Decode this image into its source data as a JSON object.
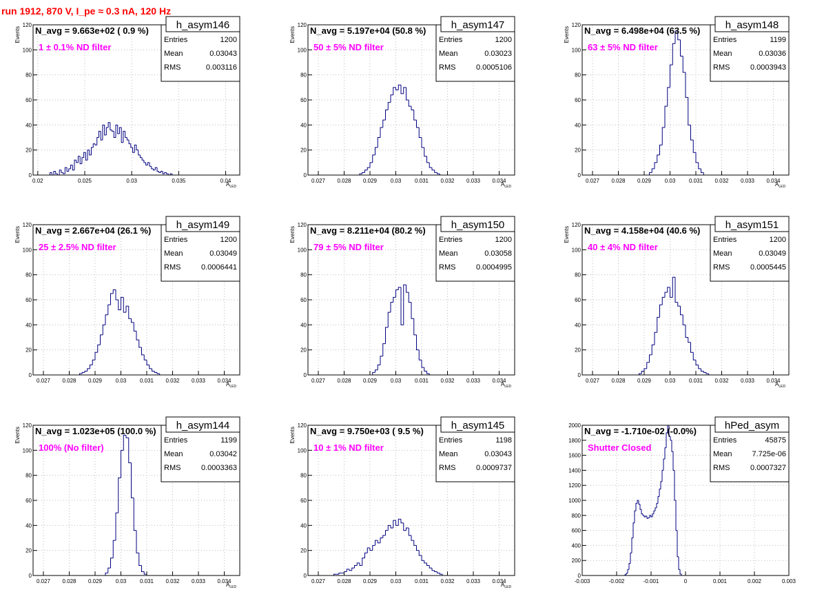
{
  "header": {
    "run_title": "run 1912,   870 V, I_pe ≈ 0.3 nA, 120 Hz"
  },
  "colors": {
    "histogram": "#000080",
    "annotation": "#ff00ff",
    "title": "#ff0000",
    "grid": "#bbbbbb"
  },
  "chart_data": [
    {
      "type": "histogram",
      "name": "h_asym146",
      "navg": "N_avg = 9.663e+02 ( 0.9 %)",
      "filter_label": "1 ± 0.1% ND filter",
      "stats": {
        "entries": "1200",
        "mean": "0.03043",
        "rms": "0.003116"
      },
      "xlabel": "A",
      "xlabel_sub": "LED",
      "ylabel": "Events",
      "xlim": [
        0.0195,
        0.0415
      ],
      "ylim": [
        0,
        120
      ],
      "xticks": [
        0.02,
        0.025,
        0.03,
        0.035,
        0.04
      ],
      "xtick_labels": [
        "0.02",
        "0.025",
        "0.03",
        "0.035",
        "0.04"
      ],
      "yticks": [
        0,
        20,
        40,
        60,
        80,
        100,
        120
      ],
      "ytick_labels": [
        "0",
        "20",
        "40",
        "60",
        "80",
        "100",
        "120"
      ],
      "bin_start": 0.0213,
      "bin_width": 0.0002,
      "counts": [
        2,
        0,
        3,
        1,
        0,
        4,
        2,
        1,
        6,
        3,
        5,
        8,
        4,
        12,
        10,
        15,
        9,
        14,
        18,
        12,
        20,
        16,
        22,
        25,
        24,
        30,
        35,
        28,
        40,
        32,
        38,
        42,
        36,
        35,
        30,
        40,
        33,
        38,
        26,
        35,
        30,
        28,
        25,
        22,
        18,
        24,
        20,
        16,
        14,
        12,
        10,
        8,
        10,
        7,
        5,
        4,
        6,
        3,
        2,
        3,
        1,
        2,
        1,
        0,
        1
      ]
    },
    {
      "type": "histogram",
      "name": "h_asym147",
      "navg": "N_avg = 5.197e+04 (50.8 %)",
      "filter_label": "50 ± 5% ND filter",
      "stats": {
        "entries": "1200",
        "mean": "0.03023",
        "rms": "0.0005106"
      },
      "xlabel": "A",
      "xlabel_sub": "LED",
      "ylabel": "Events",
      "xlim": [
        0.0266,
        0.0346
      ],
      "ylim": [
        0,
        120
      ],
      "xticks": [
        0.027,
        0.028,
        0.029,
        0.03,
        0.031,
        0.032,
        0.033,
        0.034
      ],
      "xtick_labels": [
        "0.027",
        "0.028",
        "0.029",
        "0.03",
        "0.031",
        "0.032",
        "0.033",
        "0.034"
      ],
      "yticks": [
        0,
        20,
        40,
        60,
        80,
        100,
        120
      ],
      "ytick_labels": [
        "0",
        "20",
        "40",
        "60",
        "80",
        "100",
        "120"
      ],
      "bin_start": 0.0286,
      "bin_width": 0.0001,
      "counts": [
        1,
        2,
        4,
        6,
        10,
        16,
        22,
        30,
        38,
        44,
        52,
        58,
        64,
        70,
        68,
        72,
        65,
        70,
        60,
        55,
        52,
        44,
        38,
        30,
        22,
        15,
        10,
        6,
        4,
        2,
        1
      ]
    },
    {
      "type": "histogram",
      "name": "h_asym148",
      "navg": "N_avg = 6.498e+04 (63.5 %)",
      "filter_label": "63 ± 5% ND filter",
      "stats": {
        "entries": "1199",
        "mean": "0.03036",
        "rms": "0.0003943"
      },
      "xlabel": "A",
      "xlabel_sub": "LED",
      "ylabel": "Events",
      "xlim": [
        0.0266,
        0.0346
      ],
      "ylim": [
        0,
        120
      ],
      "xticks": [
        0.027,
        0.028,
        0.029,
        0.03,
        0.031,
        0.032,
        0.033,
        0.034
      ],
      "xtick_labels": [
        "0.027",
        "0.028",
        "0.029",
        "0.03",
        "0.031",
        "0.032",
        "0.033",
        "0.034"
      ],
      "yticks": [
        0,
        20,
        40,
        60,
        80,
        100,
        120
      ],
      "ytick_labels": [
        "0",
        "20",
        "40",
        "60",
        "80",
        "100",
        "120"
      ],
      "bin_start": 0.0292,
      "bin_width": 0.0001,
      "counts": [
        2,
        5,
        10,
        16,
        24,
        38,
        55,
        70,
        88,
        105,
        115,
        108,
        95,
        82,
        62,
        40,
        28,
        18,
        10,
        5,
        2
      ]
    },
    {
      "type": "histogram",
      "name": "h_asym149",
      "navg": "N_avg = 2.667e+04 (26.1 %)",
      "filter_label": "25 ± 2.5% ND filter",
      "stats": {
        "entries": "1200",
        "mean": "0.03049",
        "rms": "0.0006441"
      },
      "xlabel": "A",
      "xlabel_sub": "LED",
      "ylabel": "Events",
      "xlim": [
        0.0266,
        0.0346
      ],
      "ylim": [
        0,
        120
      ],
      "xticks": [
        0.027,
        0.028,
        0.029,
        0.03,
        0.031,
        0.032,
        0.033,
        0.034
      ],
      "xtick_labels": [
        "0.027",
        "0.028",
        "0.029",
        "0.03",
        "0.031",
        "0.032",
        "0.033",
        "0.034"
      ],
      "yticks": [
        0,
        20,
        40,
        60,
        80,
        100,
        120
      ],
      "ytick_labels": [
        "0",
        "20",
        "40",
        "60",
        "80",
        "100",
        "120"
      ],
      "bin_start": 0.0284,
      "bin_width": 0.0001,
      "counts": [
        1,
        2,
        3,
        5,
        8,
        12,
        18,
        24,
        32,
        40,
        48,
        56,
        65,
        68,
        60,
        52,
        62,
        50,
        55,
        45,
        42,
        35,
        28,
        22,
        16,
        12,
        8,
        5,
        3,
        2,
        1
      ]
    },
    {
      "type": "histogram",
      "name": "h_asym150",
      "navg": "N_avg = 8.211e+04 (80.2 %)",
      "filter_label": "79 ± 5% ND filter",
      "stats": {
        "entries": "1200",
        "mean": "0.03058",
        "rms": "0.0004995"
      },
      "xlabel": "A",
      "xlabel_sub": "LED",
      "ylabel": "Events",
      "xlim": [
        0.0266,
        0.0346
      ],
      "ylim": [
        0,
        120
      ],
      "xticks": [
        0.027,
        0.028,
        0.029,
        0.03,
        0.031,
        0.032,
        0.033,
        0.034
      ],
      "xtick_labels": [
        "0.027",
        "0.028",
        "0.029",
        "0.03",
        "0.031",
        "0.032",
        "0.033",
        "0.034"
      ],
      "yticks": [
        0,
        20,
        40,
        60,
        80,
        100,
        120
      ],
      "ytick_labels": [
        "0",
        "20",
        "40",
        "60",
        "80",
        "100",
        "120"
      ],
      "bin_start": 0.0291,
      "bin_width": 0.0001,
      "counts": [
        2,
        4,
        8,
        15,
        25,
        38,
        50,
        58,
        62,
        68,
        70,
        40,
        72,
        66,
        58,
        45,
        32,
        20,
        12,
        6,
        3,
        1
      ]
    },
    {
      "type": "histogram",
      "name": "h_asym151",
      "navg": "N_avg = 4.158e+04 (40.6 %)",
      "filter_label": "40 ± 4% ND filter",
      "stats": {
        "entries": "1200",
        "mean": "0.03049",
        "rms": "0.0005445"
      },
      "xlabel": "A",
      "xlabel_sub": "LED",
      "ylabel": "Events",
      "xlim": [
        0.0266,
        0.0346
      ],
      "ylim": [
        0,
        120
      ],
      "xticks": [
        0.027,
        0.028,
        0.029,
        0.03,
        0.031,
        0.032,
        0.033,
        0.034
      ],
      "xtick_labels": [
        "0.027",
        "0.028",
        "0.029",
        "0.03",
        "0.031",
        "0.032",
        "0.033",
        "0.034"
      ],
      "yticks": [
        0,
        20,
        40,
        60,
        80,
        100,
        120
      ],
      "ytick_labels": [
        "0",
        "20",
        "40",
        "60",
        "80",
        "100",
        "120"
      ],
      "bin_start": 0.0288,
      "bin_width": 0.0001,
      "counts": [
        1,
        3,
        5,
        10,
        16,
        24,
        34,
        46,
        56,
        62,
        66,
        70,
        62,
        78,
        58,
        55,
        48,
        40,
        30,
        26,
        18,
        12,
        8,
        5,
        3,
        2,
        1
      ]
    },
    {
      "type": "histogram",
      "name": "h_asym144",
      "navg": "N_avg = 1.023e+05 (100.0 %)",
      "filter_label": "100% (No filter)",
      "stats": {
        "entries": "1199",
        "mean": "0.03042",
        "rms": "0.0003363"
      },
      "xlabel": "A",
      "xlabel_sub": "LED",
      "ylabel": "Events",
      "xlim": [
        0.0266,
        0.0346
      ],
      "ylim": [
        0,
        120
      ],
      "xticks": [
        0.027,
        0.028,
        0.029,
        0.03,
        0.031,
        0.032,
        0.033,
        0.034
      ],
      "xtick_labels": [
        "0.027",
        "0.028",
        "0.029",
        "0.03",
        "0.031",
        "0.032",
        "0.033",
        "0.034"
      ],
      "yticks": [
        0,
        20,
        40,
        60,
        80,
        100,
        120
      ],
      "ytick_labels": [
        "0",
        "20",
        "40",
        "60",
        "80",
        "100",
        "120"
      ],
      "bin_start": 0.0294,
      "bin_width": 0.0001,
      "counts": [
        2,
        6,
        14,
        28,
        50,
        78,
        100,
        112,
        110,
        90,
        62,
        36,
        18,
        8,
        3,
        1
      ]
    },
    {
      "type": "histogram",
      "name": "h_asym145",
      "navg": "N_avg = 9.750e+03 ( 9.5 %)",
      "filter_label": "10 ± 1% ND filter",
      "stats": {
        "entries": "1198",
        "mean": "0.03043",
        "rms": "0.0009737"
      },
      "xlabel": "A",
      "xlabel_sub": "LED",
      "ylabel": "Events",
      "xlim": [
        0.0266,
        0.0346
      ],
      "ylim": [
        0,
        120
      ],
      "xticks": [
        0.027,
        0.028,
        0.029,
        0.03,
        0.031,
        0.032,
        0.033,
        0.034
      ],
      "xtick_labels": [
        "0.027",
        "0.028",
        "0.029",
        "0.03",
        "0.031",
        "0.032",
        "0.033",
        "0.034"
      ],
      "yticks": [
        0,
        20,
        40,
        60,
        80,
        100,
        120
      ],
      "ytick_labels": [
        "0",
        "20",
        "40",
        "60",
        "80",
        "100",
        "120"
      ],
      "bin_start": 0.0276,
      "bin_width": 0.0001,
      "counts": [
        1,
        1,
        2,
        2,
        3,
        5,
        4,
        6,
        8,
        10,
        8,
        14,
        18,
        22,
        20,
        24,
        28,
        26,
        30,
        32,
        36,
        40,
        38,
        44,
        40,
        45,
        42,
        36,
        38,
        32,
        28,
        24,
        20,
        16,
        12,
        10,
        8,
        6,
        4,
        3,
        2,
        1
      ]
    },
    {
      "type": "histogram",
      "name": "hPed_asym",
      "navg": "N_avg = -1.710e-02 (-0.0%)",
      "filter_label": "Shutter Closed",
      "stats": {
        "entries": "45875",
        "mean": "7.725e-06",
        "rms": "0.0007327"
      },
      "xlabel": "",
      "xlabel_sub": "",
      "ylabel": "",
      "xlim": [
        -0.003,
        0.003
      ],
      "ylim": [
        0,
        2000
      ],
      "xticks": [
        -0.003,
        -0.002,
        -0.001,
        0,
        0.001,
        0.002,
        0.003
      ],
      "xtick_labels": [
        "-0.003",
        "-0.002",
        "-0.001",
        "0",
        "0.001",
        "0.002",
        "0.003"
      ],
      "yticks": [
        0,
        200,
        400,
        600,
        800,
        1000,
        1200,
        1400,
        1600,
        1800,
        2000
      ],
      "ytick_labels": [
        "0",
        "200",
        "400",
        "600",
        "800",
        "1000",
        "1200",
        "1400",
        "1600",
        "1800",
        "2000"
      ],
      "bin_start": -0.00176,
      "bin_width": 4e-05,
      "counts": [
        10,
        30,
        80,
        160,
        300,
        500,
        700,
        860,
        960,
        1000,
        950,
        880,
        820,
        800,
        780,
        790,
        760,
        770,
        800,
        780,
        820,
        860,
        900,
        960,
        1050,
        1150,
        1250,
        1400,
        1550,
        1700,
        1900,
        2000,
        1850,
        1800,
        1650,
        1400,
        1000,
        600,
        250,
        80,
        20
      ]
    }
  ]
}
